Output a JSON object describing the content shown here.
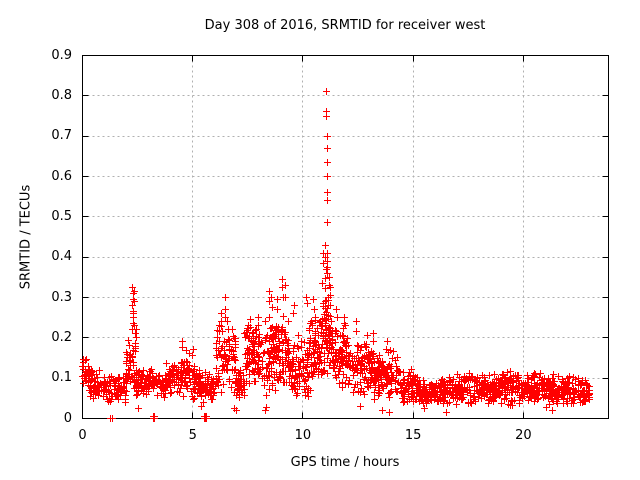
{
  "window": {
    "background": "#ffffff",
    "text_color": "#000000"
  },
  "chart_data": {
    "type": "scatter",
    "title": "Day 308 of 2016, SRMTID for receiver west",
    "xlabel": "GPS time / hours",
    "ylabel": "SRMTID / TECUs",
    "xlim": [
      0,
      23.86
    ],
    "ylim": [
      0,
      0.9
    ],
    "xticks": [
      0,
      5,
      10,
      15,
      20
    ],
    "xtick_labels": [
      "0",
      "5",
      "10",
      "15",
      "20"
    ],
    "yticks": [
      0,
      0.1,
      0.2,
      0.3,
      0.4,
      0.5,
      0.6,
      0.7,
      0.8,
      0.9
    ],
    "ytick_labels": [
      "0",
      "0.1",
      "0.2",
      "0.3",
      "0.4",
      "0.5",
      "0.6",
      "0.7",
      "0.8",
      "0.9"
    ],
    "grid": {
      "show": true,
      "color": "#b0b0b0",
      "dash": [
        2,
        3
      ]
    },
    "axes_color": "#000000",
    "legend": "none",
    "seed": 308,
    "series": [
      {
        "name": "SRMTID",
        "marker": "plus",
        "color": "#ff0000",
        "marker_size": 7,
        "band_segments_format": [
          "x_start",
          "x_end",
          "y_min",
          "y_max",
          "n_points"
        ],
        "band_segments": [
          [
            0.0,
            0.35,
            0.05,
            0.155,
            30
          ],
          [
            0.35,
            1.1,
            0.04,
            0.125,
            60
          ],
          [
            1.1,
            2.0,
            0.03,
            0.115,
            70
          ],
          [
            2.0,
            2.45,
            0.06,
            0.2,
            45
          ],
          [
            2.45,
            3.1,
            0.04,
            0.13,
            55
          ],
          [
            3.1,
            3.8,
            0.045,
            0.125,
            55
          ],
          [
            3.8,
            4.4,
            0.05,
            0.14,
            50
          ],
          [
            4.4,
            4.9,
            0.05,
            0.175,
            45
          ],
          [
            4.9,
            5.35,
            0.04,
            0.135,
            40
          ],
          [
            5.35,
            6.05,
            0.03,
            0.115,
            50
          ],
          [
            6.05,
            6.95,
            0.05,
            0.24,
            80
          ],
          [
            6.95,
            7.35,
            0.04,
            0.135,
            40
          ],
          [
            7.35,
            8.15,
            0.07,
            0.235,
            85
          ],
          [
            8.15,
            9.35,
            0.05,
            0.28,
            130
          ],
          [
            9.35,
            10.25,
            0.045,
            0.21,
            85
          ],
          [
            10.25,
            10.85,
            0.06,
            0.27,
            65
          ],
          [
            10.85,
            11.35,
            0.09,
            0.36,
            80
          ],
          [
            11.35,
            12.15,
            0.06,
            0.25,
            80
          ],
          [
            12.15,
            13.15,
            0.05,
            0.21,
            90
          ],
          [
            13.15,
            14.45,
            0.04,
            0.175,
            110
          ],
          [
            14.45,
            15.25,
            0.03,
            0.125,
            65
          ],
          [
            15.25,
            17.0,
            0.025,
            0.105,
            150
          ],
          [
            17.0,
            19.0,
            0.03,
            0.115,
            170
          ],
          [
            19.0,
            21.0,
            0.03,
            0.125,
            170
          ],
          [
            21.0,
            23.02,
            0.025,
            0.115,
            175
          ]
        ],
        "peak_columns": [
          {
            "x": 2.3,
            "ys": [
              0.325,
              0.31,
              0.295,
              0.28,
              0.265,
              0.25,
              0.235,
              0.22
            ]
          },
          {
            "x": 2.36,
            "ys": [
              0.315,
              0.29,
              0.26,
              0.23,
              0.21
            ]
          },
          {
            "x": 2.42,
            "ys": [
              0.22,
              0.2,
              0.185
            ]
          },
          {
            "x": 4.55,
            "ys": [
              0.19,
              0.175
            ]
          },
          {
            "x": 5.0,
            "ys": [
              0.17,
              0.155
            ]
          },
          {
            "x": 6.3,
            "ys": [
              0.26,
              0.24,
              0.215
            ]
          },
          {
            "x": 6.5,
            "ys": [
              0.3,
              0.27,
              0.25
            ]
          },
          {
            "x": 6.62,
            "ys": [
              0.24,
              0.22
            ]
          },
          {
            "x": 7.62,
            "ys": [
              0.245,
              0.225
            ]
          },
          {
            "x": 7.95,
            "ys": [
              0.25,
              0.23
            ]
          },
          {
            "x": 8.5,
            "ys": [
              0.315,
              0.29
            ]
          },
          {
            "x": 8.62,
            "ys": [
              0.3,
              0.275
            ]
          },
          {
            "x": 8.8,
            "ys": [
              0.295,
              0.27
            ]
          },
          {
            "x": 9.08,
            "ys": [
              0.345,
              0.325,
              0.3
            ]
          },
          {
            "x": 9.2,
            "ys": [
              0.33,
              0.3
            ]
          },
          {
            "x": 9.6,
            "ys": [
              0.28,
              0.26
            ]
          },
          {
            "x": 10.2,
            "ys": [
              0.3,
              0.285
            ]
          },
          {
            "x": 10.5,
            "ys": [
              0.295,
              0.27
            ]
          },
          {
            "x": 10.95,
            "ys": [
              0.41,
              0.385
            ]
          },
          {
            "x": 11.02,
            "ys": [
              0.43,
              0.4,
              0.37
            ]
          },
          {
            "x": 11.1,
            "ys": [
              0.81,
              0.76,
              0.75,
              0.7,
              0.67,
              0.635,
              0.6,
              0.56,
              0.54,
              0.485,
              0.41,
              0.39,
              0.375,
              0.36
            ]
          },
          {
            "x": 11.16,
            "ys": [
              0.35,
              0.33,
              0.3
            ]
          },
          {
            "x": 11.55,
            "ys": [
              0.27,
              0.25
            ]
          },
          {
            "x": 11.9,
            "ys": [
              0.25,
              0.23
            ]
          },
          {
            "x": 12.45,
            "ys": [
              0.24,
              0.215
            ]
          },
          {
            "x": 13.2,
            "ys": [
              0.21,
              0.19
            ]
          },
          {
            "x": 13.8,
            "ys": [
              0.19,
              0.17
            ]
          }
        ],
        "zero_points": [
          [
            1.28,
            0
          ],
          [
            1.36,
            0
          ],
          [
            3.22,
            0
          ],
          [
            3.25,
            0
          ],
          [
            3.28,
            0
          ],
          [
            3.22,
            0.006
          ],
          [
            3.25,
            0.006
          ],
          [
            3.28,
            0.006
          ],
          [
            5.55,
            0
          ],
          [
            5.58,
            0
          ],
          [
            5.61,
            0
          ],
          [
            5.55,
            0.006
          ],
          [
            5.58,
            0.006
          ],
          [
            5.61,
            0.006
          ]
        ],
        "low_outlier_points": [
          [
            2.55,
            0.025
          ],
          [
            5.4,
            0.03
          ],
          [
            6.9,
            0.025
          ],
          [
            7.0,
            0.02
          ],
          [
            8.3,
            0.02
          ],
          [
            8.33,
            0.028
          ],
          [
            12.6,
            0.03
          ],
          [
            13.6,
            0.02
          ],
          [
            13.92,
            0.015
          ],
          [
            16.5,
            0.015
          ],
          [
            21.3,
            0.02
          ]
        ]
      }
    ]
  }
}
